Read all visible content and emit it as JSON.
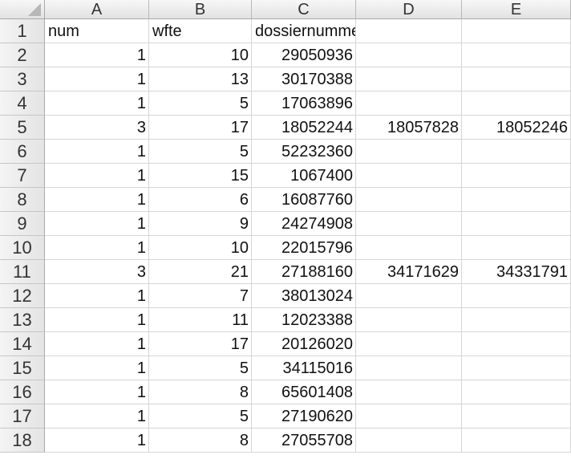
{
  "columns": [
    "A",
    "B",
    "C",
    "D",
    "E"
  ],
  "rows": [
    {
      "n": "1",
      "a": "num",
      "b": "wfte",
      "c": "dossiernummers",
      "d": "",
      "e": ""
    },
    {
      "n": "2",
      "a": "1",
      "b": "10",
      "c": "29050936",
      "d": "",
      "e": ""
    },
    {
      "n": "3",
      "a": "1",
      "b": "13",
      "c": "30170388",
      "d": "",
      "e": ""
    },
    {
      "n": "4",
      "a": "1",
      "b": "5",
      "c": "17063896",
      "d": "",
      "e": ""
    },
    {
      "n": "5",
      "a": "3",
      "b": "17",
      "c": "18052244",
      "d": "18057828",
      "e": "18052246"
    },
    {
      "n": "6",
      "a": "1",
      "b": "5",
      "c": "52232360",
      "d": "",
      "e": ""
    },
    {
      "n": "7",
      "a": "1",
      "b": "15",
      "c": "1067400",
      "d": "",
      "e": ""
    },
    {
      "n": "8",
      "a": "1",
      "b": "6",
      "c": "16087760",
      "d": "",
      "e": ""
    },
    {
      "n": "9",
      "a": "1",
      "b": "9",
      "c": "24274908",
      "d": "",
      "e": ""
    },
    {
      "n": "10",
      "a": "1",
      "b": "10",
      "c": "22015796",
      "d": "",
      "e": ""
    },
    {
      "n": "11",
      "a": "3",
      "b": "21",
      "c": "27188160",
      "d": "34171629",
      "e": "34331791"
    },
    {
      "n": "12",
      "a": "1",
      "b": "7",
      "c": "38013024",
      "d": "",
      "e": ""
    },
    {
      "n": "13",
      "a": "1",
      "b": "11",
      "c": "12023388",
      "d": "",
      "e": ""
    },
    {
      "n": "14",
      "a": "1",
      "b": "17",
      "c": "20126020",
      "d": "",
      "e": ""
    },
    {
      "n": "15",
      "a": "1",
      "b": "5",
      "c": "34115016",
      "d": "",
      "e": ""
    },
    {
      "n": "16",
      "a": "1",
      "b": "8",
      "c": "65601408",
      "d": "",
      "e": ""
    },
    {
      "n": "17",
      "a": "1",
      "b": "5",
      "c": "27190620",
      "d": "",
      "e": ""
    },
    {
      "n": "18",
      "a": "1",
      "b": "8",
      "c": "27055708",
      "d": "",
      "e": ""
    }
  ]
}
